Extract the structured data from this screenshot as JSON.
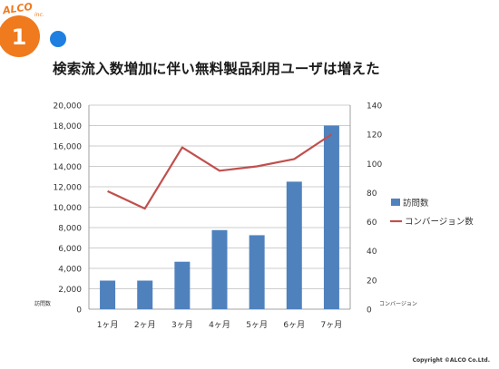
{
  "logo": {
    "brand": "ALCO",
    "suffix": "inc.",
    "number": "1",
    "colors": {
      "orange": "#F07A1E",
      "blue": "#1E7FE0"
    }
  },
  "title": "検索流入数増加に伴い無料製品利用ユーザは増えた",
  "copyright": "Copyright ©ALCO Co.Ltd.",
  "chart_data": {
    "type": "bar",
    "categories": [
      "1ヶ月",
      "2ヶ月",
      "3ヶ月",
      "4ヶ月",
      "5ヶ月",
      "6ヶ月",
      "7ヶ月"
    ],
    "series": [
      {
        "name": "訪問数",
        "type": "bar",
        "axis": "left",
        "color": "#4F81BD",
        "values": [
          2800,
          2800,
          4650,
          7750,
          7250,
          12500,
          18000
        ]
      },
      {
        "name": "コンバージョン数",
        "type": "line",
        "axis": "right",
        "color": "#C0504D",
        "values": [
          81,
          69,
          111,
          95,
          98,
          103,
          120
        ]
      }
    ],
    "ylabel": "訪問数",
    "y2label": "コンバージョン",
    "ylim": [
      0,
      20000
    ],
    "y2lim": [
      0,
      140
    ],
    "yticks": [
      "0",
      "2,000",
      "4,000",
      "6,000",
      "8,000",
      "10,000",
      "12,000",
      "14,000",
      "16,000",
      "18,000",
      "20,000"
    ],
    "y2ticks": [
      "0",
      "20",
      "40",
      "60",
      "80",
      "100",
      "120",
      "140"
    ],
    "grid": true,
    "legend": "right"
  }
}
